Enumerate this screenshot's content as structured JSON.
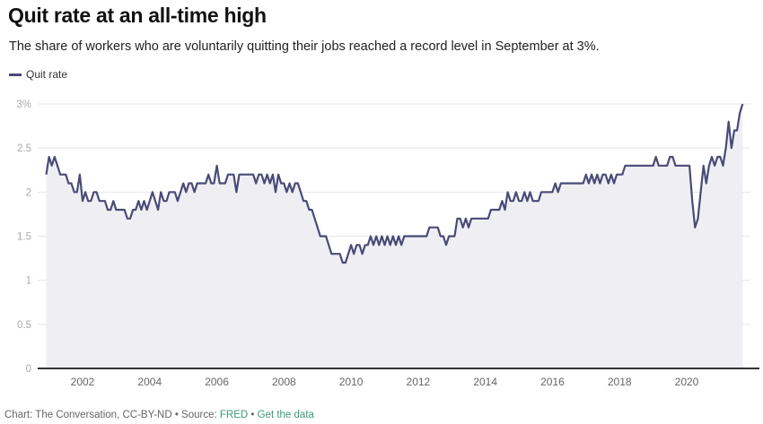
{
  "title": "Quit rate at an all-time high",
  "subtitle": "The share of workers who are voluntarily quitting their jobs reached a record level in September at 3%.",
  "footer": {
    "credit": "Chart: The Conversation, CC-BY-ND • Source: ",
    "source_link": "FRED",
    "separator": " • ",
    "data_link": "Get the data"
  },
  "chart_data": {
    "type": "area",
    "title": "Quit rate at an all-time high",
    "xlabel": "",
    "ylabel": "",
    "legend": {
      "position": "top-left",
      "entries": [
        "Quit rate"
      ]
    },
    "grid": true,
    "xlim": [
      "2000-12",
      "2021-09"
    ],
    "ylim": [
      0,
      3
    ],
    "x_ticks": [
      "2002",
      "2004",
      "2006",
      "2008",
      "2010",
      "2012",
      "2014",
      "2016",
      "2018",
      "2020"
    ],
    "y_ticks": [
      "0",
      "0.5",
      "1",
      "1.5",
      "2",
      "2.5",
      "3%"
    ],
    "colors": {
      "line": "#4a4a78",
      "fill": "#efeff3",
      "grid": "#e6e6e6",
      "axis": "#333333"
    },
    "series": [
      {
        "name": "Quit rate",
        "start": "2000-12",
        "frequency": "monthly",
        "values": [
          2.2,
          2.4,
          2.3,
          2.4,
          2.3,
          2.2,
          2.2,
          2.2,
          2.1,
          2.1,
          2.0,
          2.0,
          2.2,
          1.9,
          2.0,
          1.9,
          1.9,
          2.0,
          2.0,
          1.9,
          1.9,
          1.9,
          1.8,
          1.8,
          1.9,
          1.8,
          1.8,
          1.8,
          1.8,
          1.7,
          1.7,
          1.8,
          1.8,
          1.9,
          1.8,
          1.9,
          1.8,
          1.9,
          2.0,
          1.9,
          1.8,
          2.0,
          1.9,
          1.9,
          2.0,
          2.0,
          2.0,
          1.9,
          2.0,
          2.1,
          2.0,
          2.1,
          2.1,
          2.0,
          2.1,
          2.1,
          2.1,
          2.1,
          2.2,
          2.1,
          2.1,
          2.3,
          2.1,
          2.1,
          2.1,
          2.2,
          2.2,
          2.2,
          2.0,
          2.2,
          2.2,
          2.2,
          2.2,
          2.2,
          2.2,
          2.1,
          2.2,
          2.2,
          2.1,
          2.2,
          2.1,
          2.2,
          2.0,
          2.2,
          2.1,
          2.1,
          2.0,
          2.1,
          2.0,
          2.1,
          2.1,
          2.0,
          1.9,
          1.9,
          1.8,
          1.8,
          1.7,
          1.6,
          1.5,
          1.5,
          1.5,
          1.4,
          1.3,
          1.3,
          1.3,
          1.3,
          1.2,
          1.2,
          1.3,
          1.4,
          1.3,
          1.4,
          1.4,
          1.3,
          1.4,
          1.4,
          1.5,
          1.4,
          1.5,
          1.4,
          1.5,
          1.4,
          1.5,
          1.4,
          1.5,
          1.4,
          1.5,
          1.4,
          1.5,
          1.5,
          1.5,
          1.5,
          1.5,
          1.5,
          1.5,
          1.5,
          1.5,
          1.6,
          1.6,
          1.6,
          1.6,
          1.5,
          1.5,
          1.4,
          1.5,
          1.5,
          1.5,
          1.7,
          1.7,
          1.6,
          1.7,
          1.6,
          1.7,
          1.7,
          1.7,
          1.7,
          1.7,
          1.7,
          1.7,
          1.8,
          1.8,
          1.8,
          1.8,
          1.9,
          1.8,
          2.0,
          1.9,
          1.9,
          2.0,
          1.9,
          1.9,
          2.0,
          1.9,
          2.0,
          1.9,
          1.9,
          1.9,
          2.0,
          2.0,
          2.0,
          2.0,
          2.0,
          2.1,
          2.0,
          2.1,
          2.1,
          2.1,
          2.1,
          2.1,
          2.1,
          2.1,
          2.1,
          2.1,
          2.2,
          2.1,
          2.2,
          2.1,
          2.2,
          2.1,
          2.2,
          2.2,
          2.1,
          2.2,
          2.1,
          2.2,
          2.2,
          2.2,
          2.3,
          2.3,
          2.3,
          2.3,
          2.3,
          2.3,
          2.3,
          2.3,
          2.3,
          2.3,
          2.3,
          2.4,
          2.3,
          2.3,
          2.3,
          2.3,
          2.4,
          2.4,
          2.3,
          2.3,
          2.3,
          2.3,
          2.3,
          2.3,
          1.9,
          1.6,
          1.7,
          2.0,
          2.3,
          2.1,
          2.3,
          2.4,
          2.3,
          2.4,
          2.4,
          2.3,
          2.5,
          2.8,
          2.5,
          2.7,
          2.7,
          2.9,
          3.0
        ]
      }
    ]
  }
}
